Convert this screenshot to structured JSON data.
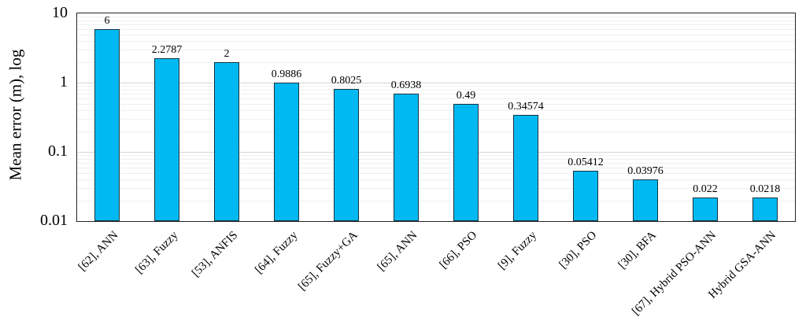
{
  "chart_data": {
    "type": "bar",
    "title": "",
    "xlabel": "",
    "ylabel": "Mean error (m), log",
    "yscale": "log",
    "ylim": [
      0.01,
      10
    ],
    "ytick_values": [
      10,
      1,
      0.1,
      0.01
    ],
    "ytick_labels": [
      "10",
      "1",
      "0.1",
      "0.01"
    ],
    "grid": {
      "major": true,
      "minor": true,
      "minor_steps": [
        2,
        3,
        4,
        5,
        6,
        7,
        8,
        9
      ],
      "major_values": [
        0.1,
        1
      ]
    },
    "legend": null,
    "categories": [
      "[62], ANN",
      "[63], Fuzzy",
      "[53], ANFIS",
      "[64], Fuzzy",
      "[65], Fuzzy+GA",
      "[65], ANN",
      "[66], PSO",
      "[9], Fuzzy",
      "[30], PSO",
      "[30], BFA",
      "[67], Hybrid PSO-ANN",
      "Hybrid GSA-ANN"
    ],
    "values": [
      6,
      2.2787,
      2,
      0.9886,
      0.8025,
      0.6938,
      0.49,
      0.34574,
      0.05412,
      0.03976,
      0.022,
      0.0218
    ],
    "value_labels": [
      "6",
      "2.2787",
      "2",
      "0.9886",
      "0.8025",
      "0.6938",
      "0.49",
      "0.34574",
      "0.05412",
      "0.03976",
      "0.022",
      "0.0218"
    ],
    "colors": {
      "bar_fill": "#00B9F2",
      "bar_border": "#16323C",
      "plot_border": "#262626",
      "grid_major": "#D4D4D4",
      "grid_minor": "#EFEFEF",
      "text": "#000000",
      "background": "#FFFFFF"
    }
  }
}
